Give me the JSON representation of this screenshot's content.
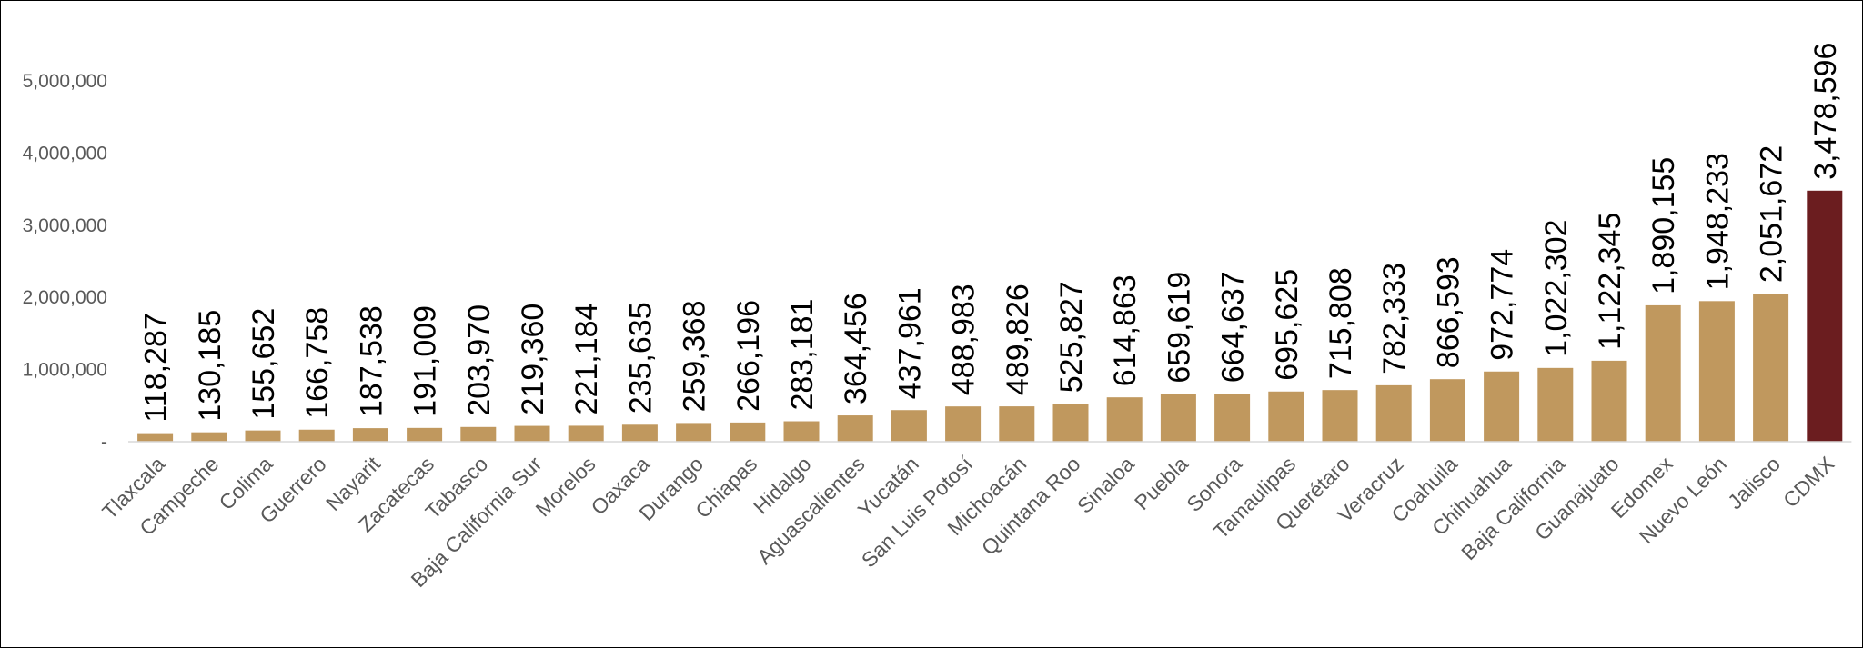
{
  "chart_data": {
    "type": "bar",
    "title": "",
    "xlabel": "",
    "ylabel": "",
    "ylim": [
      0,
      5000000
    ],
    "ytick_labels": [
      "-",
      "1,000,000",
      "2,000,000",
      "3,000,000",
      "4,000,000",
      "5,000,000"
    ],
    "grid": false,
    "legend": "none",
    "colors": {
      "bar": "#C0985E",
      "highlight": "#6B1D1F",
      "axis": "#D9D9D9"
    },
    "highlight_category": "CDMX",
    "categories": [
      "Tlaxcala",
      "Campeche",
      "Colima",
      "Guerrero",
      "Nayarit",
      "Zacatecas",
      "Tabasco",
      "Baja California Sur",
      "Morelos",
      "Oaxaca",
      "Durango",
      "Chiapas",
      "Hidalgo",
      "Aguascalientes",
      "Yucatán",
      "San Luis Potosí",
      "Michoacán",
      "Quintana Roo",
      "Sinaloa",
      "Puebla",
      "Sonora",
      "Tamaulipas",
      "Querétaro",
      "Veracruz",
      "Coahuila",
      "Chihuahua",
      "Baja California",
      "Guanajuato",
      "Edomex",
      "Nuevo León",
      "Jalisco",
      "CDMX"
    ],
    "values": [
      118287,
      130185,
      155652,
      166758,
      187538,
      191009,
      203970,
      219360,
      221184,
      235635,
      259368,
      266196,
      283181,
      364456,
      437961,
      488983,
      489826,
      525827,
      614863,
      659619,
      664637,
      695625,
      715808,
      782333,
      866593,
      972774,
      1022302,
      1122345,
      1890155,
      1948233,
      2051672,
      3478596
    ],
    "data_labels": [
      "118,287",
      "130,185",
      "155,652",
      "166,758",
      "187,538",
      "191,009",
      "203,970",
      "219,360",
      "221,184",
      "235,635",
      "259,368",
      "266,196",
      "283,181",
      "364,456",
      "437,961",
      "488,983",
      "489,826",
      "525,827",
      "614,863",
      "659,619",
      "664,637",
      "695,625",
      "715,808",
      "782,333",
      "866,593",
      "972,774",
      "1,022,302",
      "1,122,345",
      "1,890,155",
      "1,948,233",
      "2,051,672",
      "3,478,596"
    ]
  }
}
